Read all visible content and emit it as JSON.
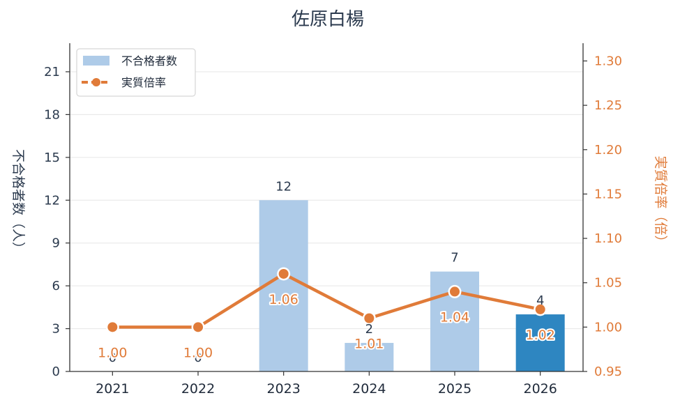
{
  "chart_data": {
    "type": "bar",
    "title": "佐原白楊",
    "categories": [
      "2021",
      "2022",
      "2023",
      "2024",
      "2025",
      "2026"
    ],
    "series": [
      {
        "name": "不合格者数",
        "type": "bar",
        "axis": "left",
        "values": [
          0,
          0,
          12,
          2,
          7,
          4
        ],
        "labels": [
          "0",
          "0",
          "12",
          "2",
          "7",
          "4"
        ],
        "color": "#aecbe8",
        "highlight_color": "#2e86c1",
        "highlight_index": 5
      },
      {
        "name": "実質倍率",
        "type": "line",
        "axis": "right",
        "values": [
          1.0,
          1.0,
          1.06,
          1.01,
          1.04,
          1.02
        ],
        "labels": [
          "1.00",
          "1.00",
          "1.06",
          "1.01",
          "1.04",
          "1.02"
        ],
        "color": "#e07b39"
      }
    ],
    "ylabel": "不合格者数（人）",
    "ylabel_right": "実質倍率（倍）",
    "ylim": [
      0,
      23
    ],
    "yticks": [
      0,
      3,
      6,
      9,
      12,
      15,
      18,
      21
    ],
    "ylim_right": [
      0.95,
      1.32
    ],
    "yticks_right": [
      0.95,
      1.0,
      1.05,
      1.1,
      1.15,
      1.2,
      1.25,
      1.3
    ],
    "ytick_labels_right": [
      "0.95",
      "1.00",
      "1.05",
      "1.10",
      "1.15",
      "1.20",
      "1.25",
      "1.30"
    ],
    "grid": true,
    "legend_position": "top-left",
    "colors": {
      "text": "#2b3a4e",
      "accent_right": "#e07b39",
      "grid": "#e6e6e6",
      "axis": "#333333"
    }
  }
}
